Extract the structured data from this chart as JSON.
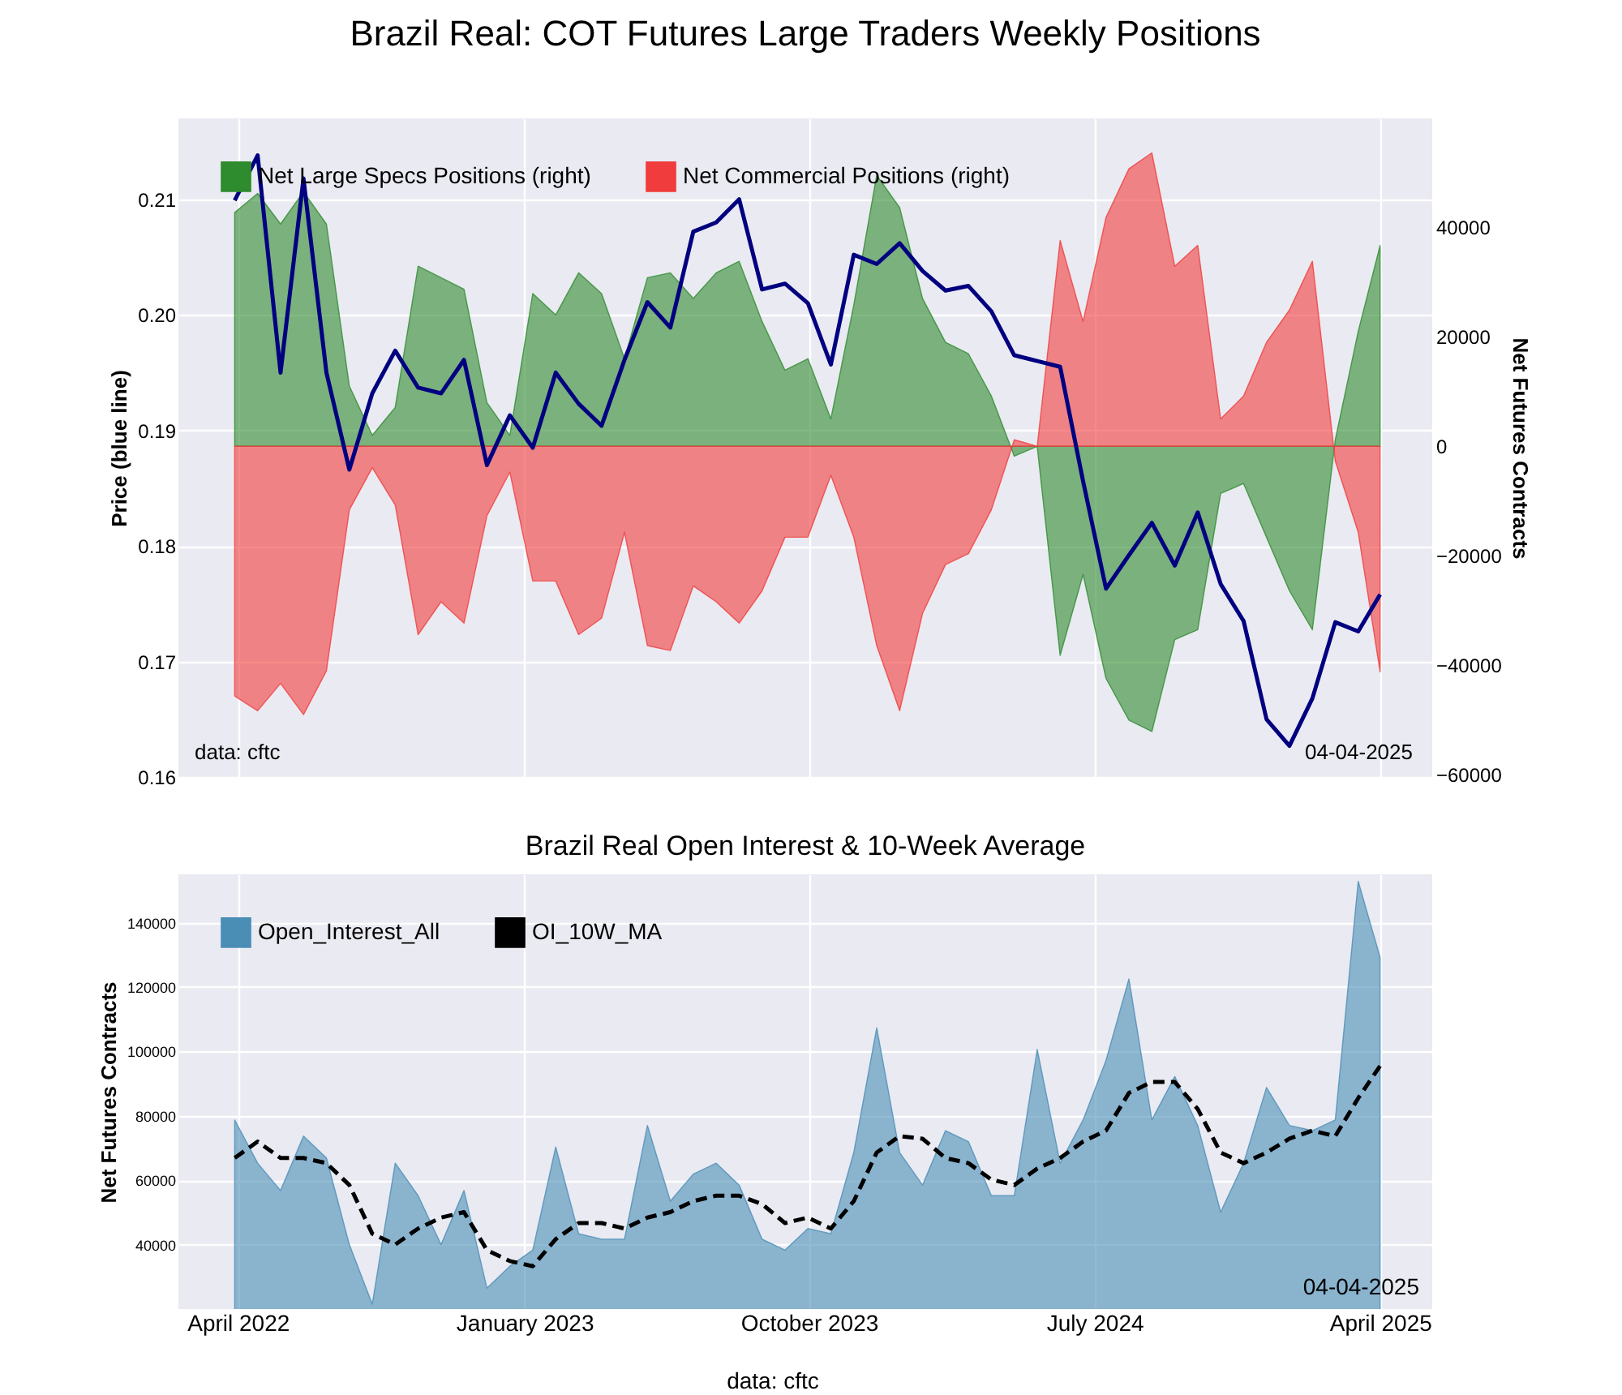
{
  "chart_data": [
    {
      "type": "line",
      "title": "Brazil Real: COT Futures Large Traders Weekly Positions",
      "ylabel": "Price (blue line)",
      "y2label": "Net Futures Contracts",
      "x": [
        "2022-03-29",
        "2022-04-20",
        "2022-05-12",
        "2022-06-03",
        "2022-06-25",
        "2022-07-17",
        "2022-08-08",
        "2022-08-30",
        "2022-09-21",
        "2022-10-13",
        "2022-11-04",
        "2022-11-26",
        "2022-12-18",
        "2023-01-09",
        "2023-01-31",
        "2023-02-22",
        "2023-03-16",
        "2023-04-07",
        "2023-04-29",
        "2023-05-21",
        "2023-06-12",
        "2023-07-04",
        "2023-07-26",
        "2023-08-17",
        "2023-09-08",
        "2023-09-30",
        "2023-10-22",
        "2023-11-13",
        "2023-12-05",
        "2023-12-27",
        "2024-01-18",
        "2024-02-09",
        "2024-03-02",
        "2024-03-24",
        "2024-04-15",
        "2024-05-07",
        "2024-05-29",
        "2024-06-20",
        "2024-07-12",
        "2024-08-03",
        "2024-08-25",
        "2024-09-16",
        "2024-10-08",
        "2024-10-30",
        "2024-11-21",
        "2024-12-13",
        "2025-01-04",
        "2025-01-26",
        "2025-02-17",
        "2025-03-11",
        "2025-04-01"
      ],
      "series": [
        {
          "axis": "y",
          "color": "#000080",
          "values": [
            0.2099,
            0.2138,
            0.195,
            0.2118,
            0.195,
            0.1866,
            0.1932,
            0.1969,
            0.1937,
            0.1932,
            0.1961,
            0.187,
            0.1913,
            0.1885,
            0.195,
            0.1923,
            0.1904,
            0.1961,
            0.2011,
            0.1989,
            0.2072,
            0.208,
            0.21,
            0.2022,
            0.2027,
            0.201,
            0.1957,
            0.2052,
            0.2044,
            0.2062,
            0.2038,
            0.2021,
            0.2025,
            0.2003,
            0.1965,
            0.196,
            0.1955,
            0.1856,
            0.1763,
            0.1792,
            0.182,
            0.1783,
            0.1829,
            0.1767,
            0.1735,
            0.165,
            0.1627,
            0.1668,
            0.1734,
            0.1726,
            0.1758
          ]
        },
        {
          "type": "area",
          "axis": "y2",
          "name": "Net Large Specs Positions (right)",
          "color": "#2e8b2e",
          "values": [
            42700,
            46200,
            40600,
            46500,
            40600,
            11000,
            2000,
            7100,
            32900,
            30800,
            28700,
            8000,
            2000,
            27900,
            24000,
            31700,
            27900,
            16000,
            30800,
            31700,
            27000,
            31700,
            33800,
            22800,
            13900,
            16000,
            5000,
            25800,
            49500,
            43600,
            27000,
            19000,
            16900,
            9200,
            -1800,
            0,
            -38200,
            -23400,
            -42400,
            -50000,
            -52100,
            -35300,
            -33500,
            -8600,
            -6800,
            -16600,
            -26400,
            -33500,
            1200,
            21000,
            36700
          ]
        },
        {
          "type": "area",
          "axis": "y2",
          "name": "Net Commercial Positions (right)",
          "color": "#f03c3c",
          "values": [
            -45600,
            -48300,
            -43300,
            -49000,
            -41000,
            -11600,
            -3900,
            -10700,
            -34400,
            -28400,
            -32300,
            -12700,
            -4700,
            -24600,
            -24600,
            -34400,
            -31400,
            -15700,
            -36400,
            -37300,
            -25500,
            -28400,
            -32300,
            -26400,
            -16600,
            -16600,
            -5300,
            -16600,
            -36400,
            -48300,
            -30500,
            -21600,
            -19600,
            -11600,
            1200,
            0,
            37600,
            22800,
            41800,
            50700,
            53600,
            32900,
            36700,
            5000,
            9200,
            19000,
            24900,
            33800,
            -2700,
            -15700,
            -41200
          ]
        }
      ],
      "xlim": [
        "2022-02-03",
        "2025-05-21"
      ],
      "xticks": [
        {
          "value": "2022-04-01",
          "label": null
        },
        {
          "value": "2023-01-01",
          "label": null
        },
        {
          "value": "2023-10-01",
          "label": null
        },
        {
          "value": "2024-07-01",
          "label": null
        },
        {
          "value": "2025-04-01",
          "label": null
        }
      ],
      "ylim": [
        0.16,
        0.217
      ],
      "yticks": [
        0.16,
        0.17,
        0.18,
        0.19,
        {
          "value": 0.2,
          "label": "0.20"
        },
        0.21
      ],
      "y2lim": [
        -60400,
        59900
      ],
      "y2ticks": [
        -60000,
        -40000,
        -20000,
        0,
        20000,
        40000
      ],
      "tick_labels": "y",
      "grid": true,
      "legend": "top left",
      "annotations": [
        "data: cftc",
        "04-04-2025"
      ]
    },
    {
      "type": "area",
      "title": "Brazil Real Open Interest & 10-Week Average",
      "ylabel": "Net Futures Contracts",
      "x": [
        "2022-03-29",
        "2022-04-20",
        "2022-05-12",
        "2022-06-03",
        "2022-06-25",
        "2022-07-17",
        "2022-08-08",
        "2022-08-30",
        "2022-09-21",
        "2022-10-13",
        "2022-11-04",
        "2022-11-26",
        "2022-12-18",
        "2023-01-09",
        "2023-01-31",
        "2023-02-22",
        "2023-03-16",
        "2023-04-07",
        "2023-04-29",
        "2023-05-21",
        "2023-06-12",
        "2023-07-04",
        "2023-07-26",
        "2023-08-17",
        "2023-09-08",
        "2023-09-30",
        "2023-10-22",
        "2023-11-13",
        "2023-12-05",
        "2023-12-27",
        "2024-01-18",
        "2024-02-09",
        "2024-03-02",
        "2024-03-24",
        "2024-04-15",
        "2024-05-07",
        "2024-05-29",
        "2024-06-20",
        "2024-07-12",
        "2024-08-03",
        "2024-08-25",
        "2024-09-16",
        "2024-10-08",
        "2024-10-30",
        "2024-11-21",
        "2024-12-13",
        "2025-01-04",
        "2025-01-26",
        "2025-02-17",
        "2025-03-11",
        "2025-04-01"
      ],
      "series": [
        {
          "name": "Open_Interest_All",
          "color": "#4a8db5",
          "values": [
            78700,
            65300,
            56800,
            73700,
            66900,
            40000,
            21500,
            65300,
            55200,
            40000,
            56800,
            26500,
            33300,
            38300,
            70300,
            43400,
            41700,
            41700,
            77000,
            53500,
            61900,
            65300,
            58500,
            41700,
            38300,
            45000,
            43400,
            68600,
            107300,
            68600,
            58500,
            75400,
            72000,
            55200,
            55200,
            100600,
            65300,
            78700,
            97200,
            122500,
            78700,
            92200,
            77000,
            50100,
            65300,
            88800,
            77000,
            75400,
            78700,
            152800,
            129200
          ]
        },
        {
          "type": "line",
          "name": "OI_10W_MA",
          "color": "#000000",
          "line_style": "dashed",
          "values": [
            66900,
            72000,
            66900,
            66900,
            65300,
            58500,
            43400,
            40000,
            45000,
            48400,
            50100,
            38300,
            34900,
            33300,
            41700,
            46700,
            46700,
            45000,
            48400,
            50100,
            53500,
            55200,
            55200,
            52600,
            46700,
            48400,
            45000,
            53500,
            68600,
            73700,
            72900,
            66900,
            65300,
            60200,
            58500,
            63600,
            66900,
            72000,
            75400,
            87100,
            90500,
            90500,
            82100,
            68600,
            65300,
            68600,
            72900,
            75400,
            73700,
            85500,
            95500
          ]
        }
      ],
      "xlim": [
        "2022-02-03",
        "2025-05-21"
      ],
      "xticks": [
        {
          "value": "2022-04-01",
          "label": "April 2022"
        },
        {
          "value": "2023-01-01",
          "label": "January 2023"
        },
        {
          "value": "2023-10-01",
          "label": "October 2023"
        },
        {
          "value": "2024-07-01",
          "label": "July 2024"
        },
        {
          "value": "2025-04-01",
          "label": "April 2025"
        }
      ],
      "ylim": [
        20000,
        155000
      ],
      "yticks": [
        40000,
        60000,
        80000,
        100000,
        120000,
        140000
      ],
      "grid": true,
      "legend": "top left",
      "annotations": [
        "04-04-2025",
        "data: cftc"
      ]
    }
  ]
}
